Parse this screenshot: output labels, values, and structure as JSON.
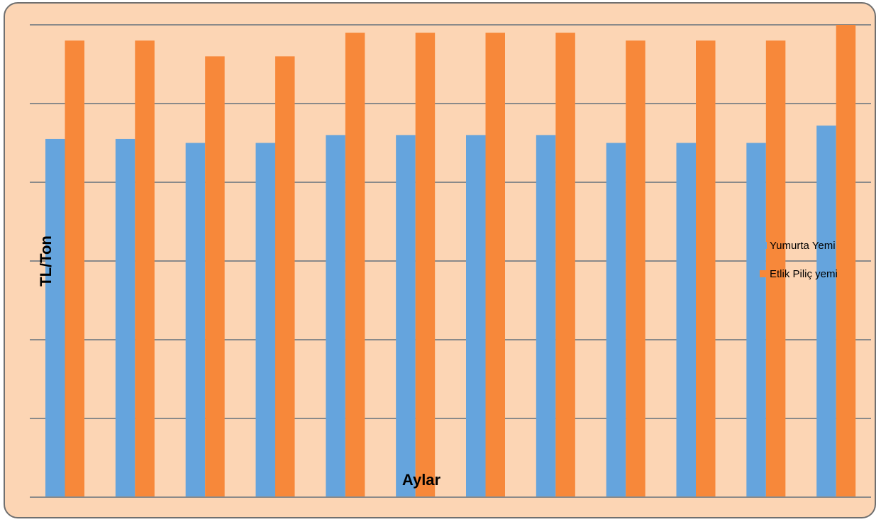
{
  "chart_data": {
    "type": "bar",
    "xlabel": "Aylar",
    "ylabel": "TL/Ton",
    "ylim": [
      0,
      600
    ],
    "grid": true,
    "legend_position": "right",
    "series": [
      {
        "name": "Yumurta Yemi",
        "color": "#65a4dd",
        "values": [
          455,
          455,
          450,
          450,
          460,
          460,
          460,
          460,
          450,
          450,
          450,
          472
        ]
      },
      {
        "name": "Etlik Piliç yemi",
        "color": "#f7883a",
        "values": [
          580,
          580,
          560,
          560,
          590,
          590,
          590,
          590,
          580,
          580,
          580,
          600
        ]
      }
    ]
  }
}
